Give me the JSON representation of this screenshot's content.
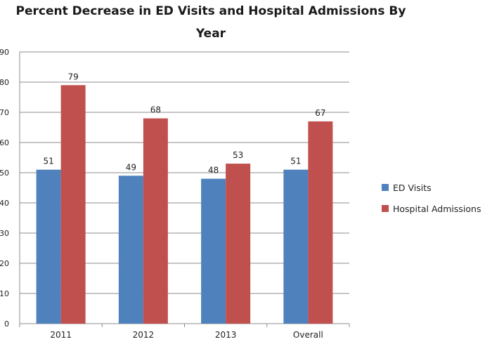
{
  "chart_data": {
    "type": "bar",
    "title": "Percent Decrease in ED Visits and Hospital Admissions By Year",
    "categories": [
      "2011",
      "2012",
      "2013",
      "Overall"
    ],
    "series": [
      {
        "name": "ED Visits",
        "values": [
          51,
          49,
          48,
          51
        ],
        "color": "#4F81BD"
      },
      {
        "name": "Hospital Admissions",
        "values": [
          79,
          68,
          53,
          67
        ],
        "color": "#C0504D"
      }
    ],
    "ylim": [
      0,
      90
    ],
    "yticks": [
      0,
      10,
      20,
      30,
      40,
      50,
      60,
      70,
      80,
      90
    ],
    "grid": true,
    "legend_position": "right",
    "data_labels": true
  }
}
